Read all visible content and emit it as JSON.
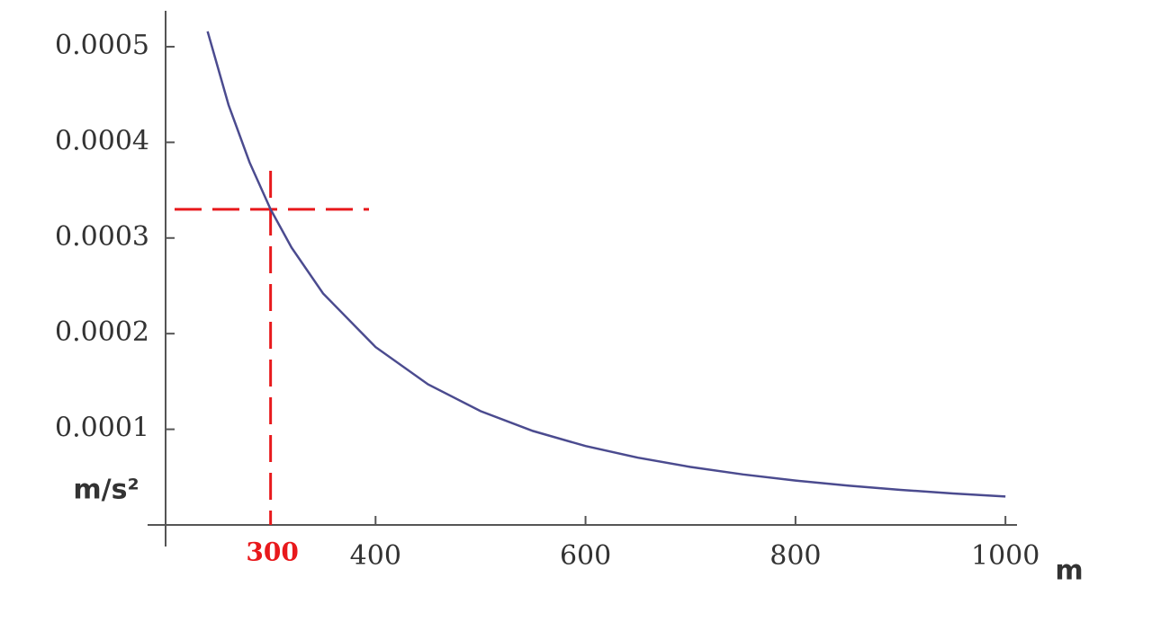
{
  "chart_data": {
    "type": "line",
    "x_label": "m",
    "y_label": "m/s²",
    "x": [
      240,
      260,
      280,
      300,
      320,
      350,
      400,
      450,
      500,
      550,
      600,
      650,
      700,
      750,
      800,
      850,
      900,
      950,
      1000
    ],
    "series": [
      {
        "color": "#4b4b8f",
        "values": [
          0.000516,
          0.000439,
          0.000379,
          0.00033,
          0.00029,
          0.000242,
          0.000186,
          0.000147,
          0.000119,
          9.82e-05,
          8.25e-05,
          7.03e-05,
          6.06e-05,
          5.28e-05,
          4.64e-05,
          4.11e-05,
          3.67e-05,
          3.29e-05,
          2.97e-05
        ]
      }
    ],
    "xlim": [
      200,
      1011
    ],
    "ylim": [
      0,
      0.00054
    ],
    "xticks": [
      400,
      600,
      800,
      1000
    ],
    "yticks": [
      0.0001,
      0.0002,
      0.0003,
      0.0004,
      0.0005
    ],
    "reference": {
      "x": 300,
      "y": 0.00033,
      "color": "#e8191c"
    }
  }
}
